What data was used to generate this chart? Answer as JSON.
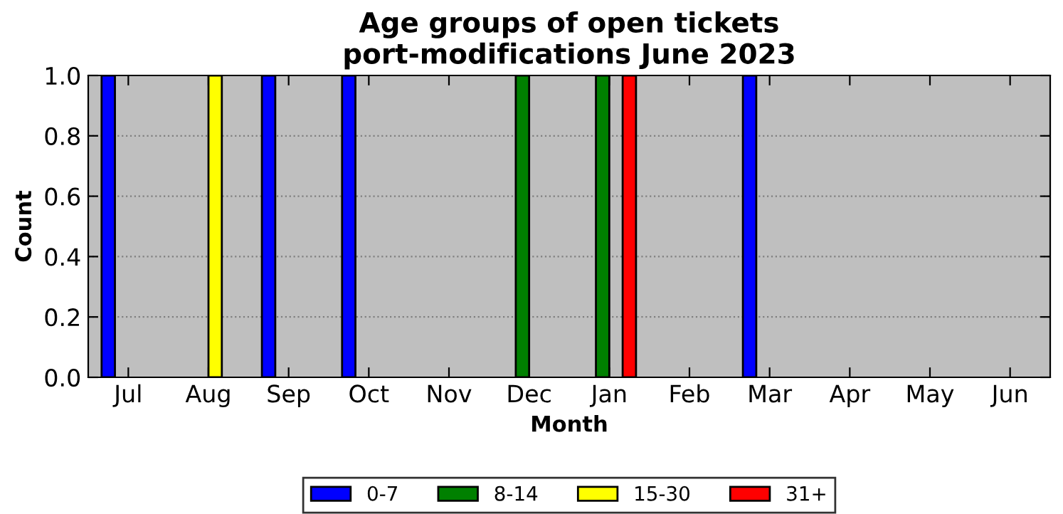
{
  "chart_data": {
    "type": "bar",
    "title": "Age groups of open tickets\nport-modifications June 2023",
    "xlabel": "Month",
    "ylabel": "Count",
    "categories": [
      "Jul",
      "Aug",
      "Sep",
      "Oct",
      "Nov",
      "Dec",
      "Jan",
      "Feb",
      "Mar",
      "Apr",
      "May",
      "Jun"
    ],
    "series": [
      {
        "name": "0-7",
        "color": "#0000ff",
        "values": [
          1,
          0,
          1,
          1,
          0,
          0,
          0,
          0,
          1,
          0,
          0,
          0
        ]
      },
      {
        "name": "8-14",
        "color": "#008000",
        "values": [
          0,
          0,
          0,
          0,
          0,
          1,
          1,
          0,
          0,
          0,
          0,
          0
        ]
      },
      {
        "name": "15-30",
        "color": "#ffff00",
        "values": [
          0,
          1,
          0,
          0,
          0,
          0,
          0,
          0,
          0,
          0,
          0,
          0
        ]
      },
      {
        "name": "31+",
        "color": "#ff0000",
        "values": [
          0,
          0,
          0,
          0,
          0,
          0,
          1,
          0,
          0,
          0,
          0,
          0
        ]
      }
    ],
    "ylim": [
      0,
      1
    ],
    "yticks": [
      {
        "value": 0,
        "label": "0.0"
      },
      {
        "value": 0.2,
        "label": "0.2"
      },
      {
        "value": 0.4,
        "label": "0.4"
      },
      {
        "value": 0.6,
        "label": "0.6"
      },
      {
        "value": 0.8,
        "label": "0.8"
      },
      {
        "value": 1,
        "label": "1.0"
      }
    ],
    "grid": "y",
    "legend": "bottom"
  }
}
